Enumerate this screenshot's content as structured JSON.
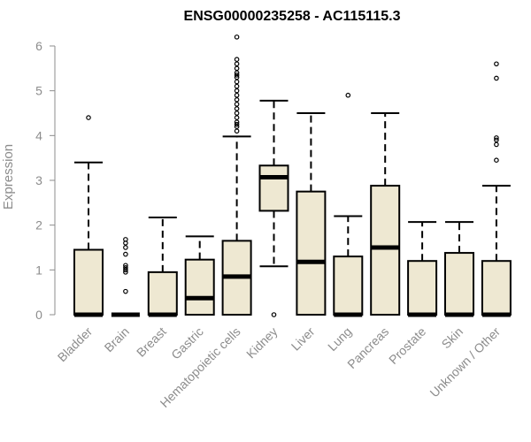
{
  "chart_data": {
    "type": "box",
    "title": "ENSG00000235258 - AC115115.3",
    "xlabel": "",
    "ylabel": "Expression",
    "ylim": [
      0,
      6
    ],
    "yticks": [
      0,
      1,
      2,
      3,
      4,
      5,
      6
    ],
    "grid": false,
    "box_fill": "#eee8d2",
    "box_stroke": "#000000",
    "axis_color": "#8c8c8c",
    "categories": [
      "Bladder",
      "Brain",
      "Breast",
      "Gastric",
      "Hematopoietic cells",
      "Kidney",
      "Liver",
      "Lung",
      "Pancreas",
      "Prostate",
      "Skin",
      "Unknown / Other"
    ],
    "boxes": [
      {
        "q1": 0,
        "median": 0,
        "q3": 1.45,
        "whisker_low": 0,
        "whisker_high": 3.4,
        "outliers": [
          4.4
        ]
      },
      {
        "q1": 0,
        "median": 0,
        "q3": 0,
        "whisker_low": 0,
        "whisker_high": 0,
        "outliers": [
          0.52,
          0.95,
          1.0,
          1.05,
          1.1,
          1.35,
          1.5,
          1.6,
          1.68
        ]
      },
      {
        "q1": 0,
        "median": 0,
        "q3": 0.95,
        "whisker_low": 0,
        "whisker_high": 2.17,
        "outliers": []
      },
      {
        "q1": 0,
        "median": 0.37,
        "q3": 1.23,
        "whisker_low": 0,
        "whisker_high": 1.75,
        "outliers": []
      },
      {
        "q1": 0,
        "median": 0.85,
        "q3": 1.65,
        "whisker_low": 0,
        "whisker_high": 3.98,
        "outliers": [
          4.1,
          4.2,
          4.25,
          4.3,
          4.4,
          4.5,
          4.6,
          4.7,
          4.8,
          4.9,
          5.0,
          5.1,
          5.2,
          5.3,
          5.35,
          5.4,
          5.5,
          5.6,
          5.7,
          6.2
        ]
      },
      {
        "q1": 2.32,
        "median": 3.07,
        "q3": 3.33,
        "whisker_low": 1.08,
        "whisker_high": 4.78,
        "outliers": [
          0
        ]
      },
      {
        "q1": 0,
        "median": 1.18,
        "q3": 2.75,
        "whisker_low": 0,
        "whisker_high": 4.5,
        "outliers": []
      },
      {
        "q1": 0,
        "median": 0,
        "q3": 1.3,
        "whisker_low": 0,
        "whisker_high": 2.2,
        "outliers": [
          4.9
        ]
      },
      {
        "q1": 0,
        "median": 1.5,
        "q3": 2.88,
        "whisker_low": 0,
        "whisker_high": 4.5,
        "outliers": []
      },
      {
        "q1": 0,
        "median": 0,
        "q3": 1.2,
        "whisker_low": 0,
        "whisker_high": 2.07,
        "outliers": []
      },
      {
        "q1": 0,
        "median": 0,
        "q3": 1.38,
        "whisker_low": 0,
        "whisker_high": 2.07,
        "outliers": []
      },
      {
        "q1": 0,
        "median": 0,
        "q3": 1.2,
        "whisker_low": 0,
        "whisker_high": 2.88,
        "outliers": [
          3.45,
          3.8,
          3.9,
          3.95,
          5.28,
          5.6
        ]
      }
    ]
  }
}
